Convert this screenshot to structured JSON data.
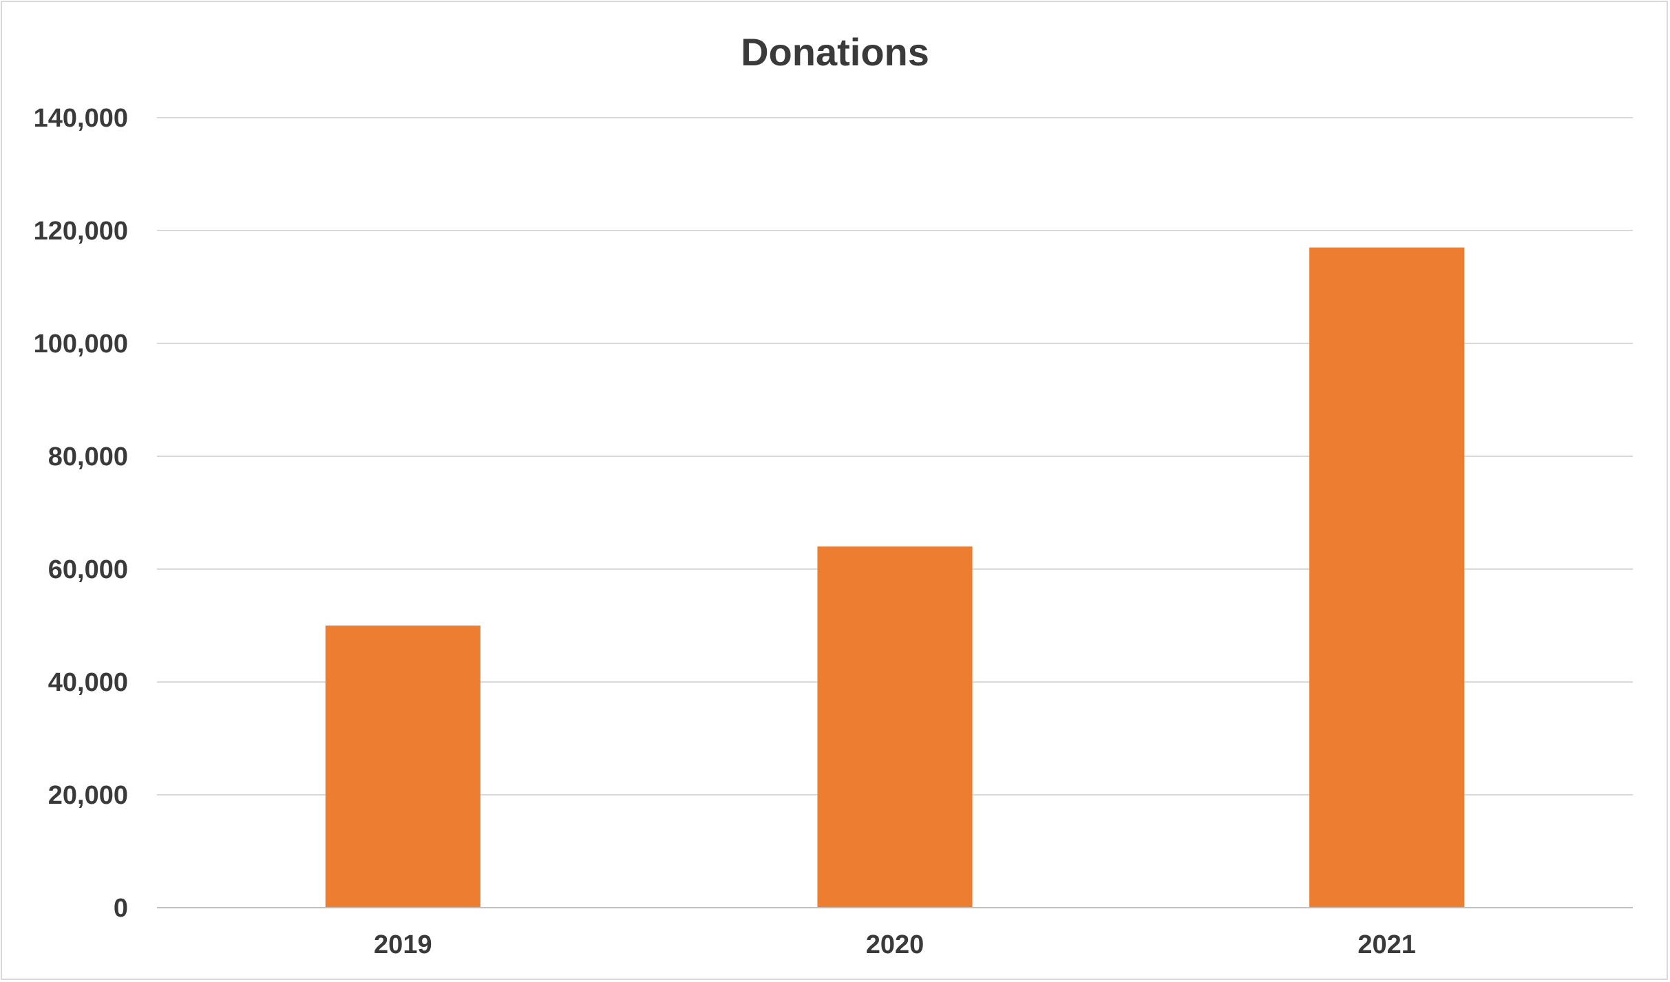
{
  "chart_data": {
    "type": "bar",
    "title": "Donations",
    "xlabel": "",
    "ylabel": "",
    "categories": [
      "2019",
      "2020",
      "2021"
    ],
    "series": [
      {
        "values": [
          50000,
          64000,
          117000
        ],
        "color": "#ED7D31"
      }
    ],
    "ylim": [
      0,
      140000
    ],
    "yticks": [
      0,
      20000,
      40000,
      60000,
      80000,
      100000,
      120000,
      140000
    ],
    "ytick_labels": [
      "0",
      "20,000",
      "40,000",
      "60,000",
      "80,000",
      "100,000",
      "120,000",
      "140,000"
    ],
    "grid": true,
    "legend": "none"
  }
}
